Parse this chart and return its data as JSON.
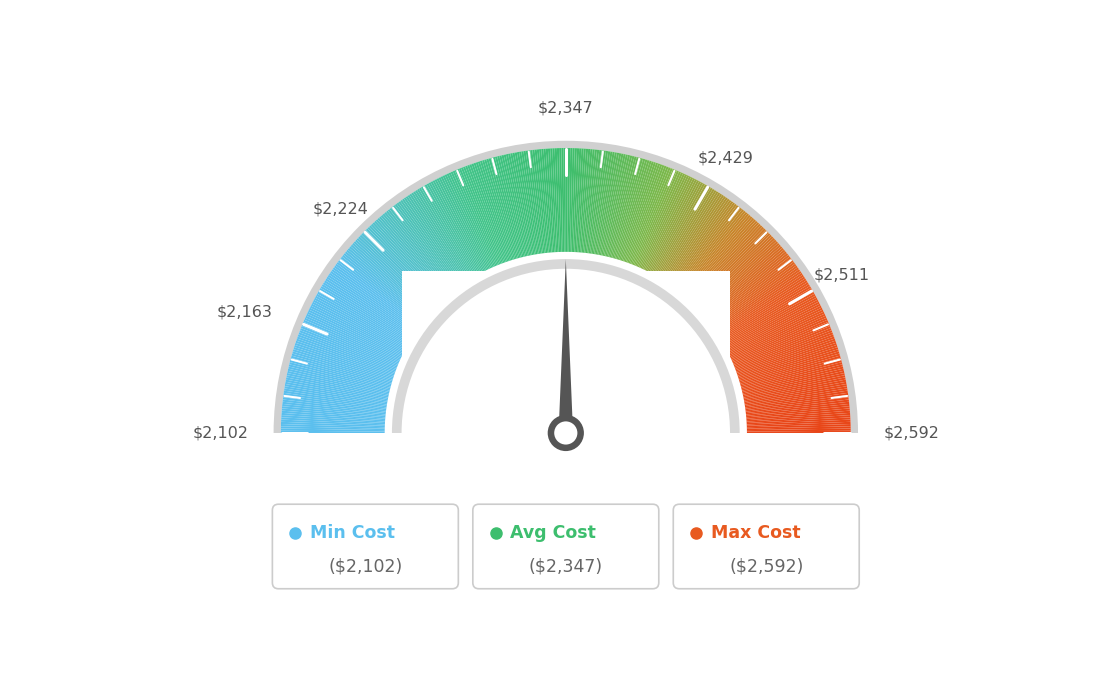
{
  "min_val": 2102,
  "avg_val": 2347,
  "max_val": 2592,
  "tick_labels": [
    {
      "value": 2102,
      "label": "$2,102"
    },
    {
      "value": 2163,
      "label": "$2,163"
    },
    {
      "value": 2224,
      "label": "$2,224"
    },
    {
      "value": 2347,
      "label": "$2,347"
    },
    {
      "value": 2429,
      "label": "$2,429"
    },
    {
      "value": 2511,
      "label": "$2,511"
    },
    {
      "value": 2592,
      "label": "$2,592"
    }
  ],
  "color_stops": [
    [
      0.0,
      "#5bbfee"
    ],
    [
      0.2,
      "#5bbfee"
    ],
    [
      0.38,
      "#42c48a"
    ],
    [
      0.5,
      "#3dbe6e"
    ],
    [
      0.62,
      "#7db84a"
    ],
    [
      0.72,
      "#c8852a"
    ],
    [
      0.82,
      "#e85a20"
    ],
    [
      1.0,
      "#e84518"
    ]
  ],
  "needle_color": "#555555",
  "background_color": "#ffffff",
  "legend_items": [
    {
      "label": "Min Cost",
      "value": "($2,102)",
      "color": "#5bbfee"
    },
    {
      "label": "Avg Cost",
      "value": "($2,347)",
      "color": "#3dbe6e"
    },
    {
      "label": "Max Cost",
      "value": "($2,592)",
      "color": "#e85a20"
    }
  ]
}
